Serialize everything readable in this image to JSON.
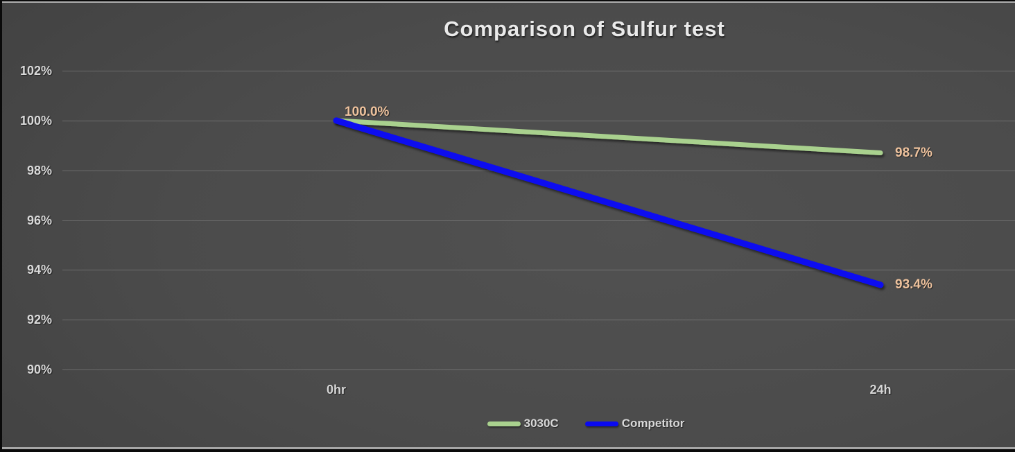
{
  "chart_data": {
    "type": "line",
    "title": "Comparison of Sulfur test",
    "categories": [
      "0hr",
      "24h"
    ],
    "series": [
      {
        "name": "3030C",
        "values": [
          100.0,
          98.7
        ],
        "labels": [
          "100.0%",
          "98.7%"
        ],
        "color": "#a9d18e",
        "stroke_width": 7
      },
      {
        "name": "Competitor",
        "values": [
          100.0,
          93.4
        ],
        "labels": [
          "100.0%",
          "93.4%"
        ],
        "color": "#0a0af0",
        "stroke_width": 9
      }
    ],
    "ylim": [
      90,
      102
    ],
    "yticks": [
      102,
      100,
      98,
      96,
      94,
      92,
      90
    ],
    "ytick_labels": [
      "102%",
      "100%",
      "98%",
      "96%",
      "94%",
      "92%",
      "90%"
    ],
    "xlabel": "",
    "ylabel": "",
    "grid": true,
    "legend_position": "bottom",
    "data_label_color": "#eec29d",
    "start_label": "100.0%"
  }
}
